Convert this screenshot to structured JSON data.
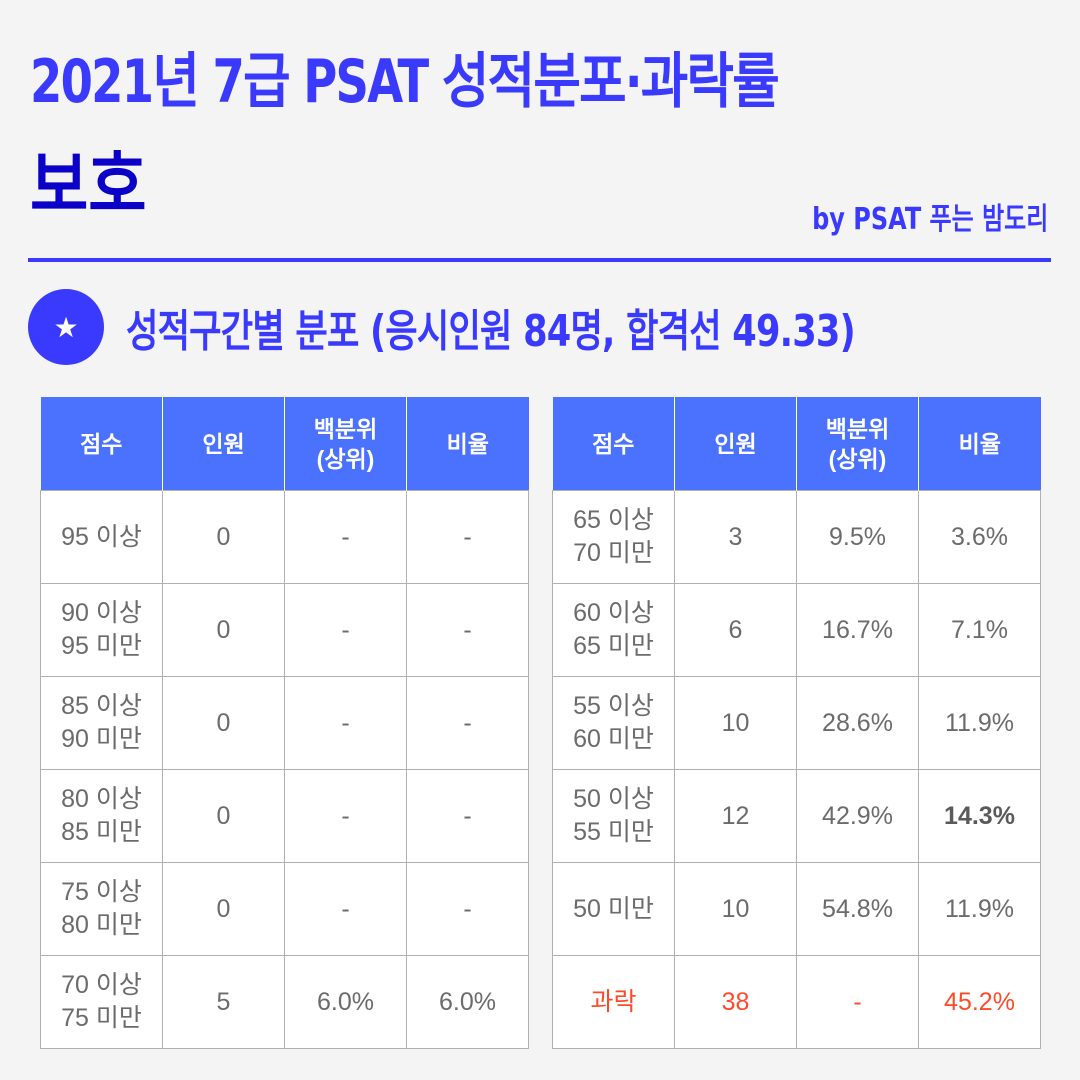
{
  "header": {
    "title": "2021년 7급 PSAT 성적분포·과락률",
    "subtitle": "보호",
    "byline": "by PSAT 푸는 밤도리"
  },
  "section": {
    "icon": "star-icon",
    "icon_glyph": "★",
    "title": "성적구간별 분포 (응시인원 84명, 합격선 49.33)"
  },
  "colors": {
    "accent": "#3a3aff",
    "subtitle": "#0a00c8",
    "table_header": "#4a72ff",
    "fail": "#ff4a2a",
    "background": "#f4f4f4"
  },
  "table_headers": [
    "점수",
    "인원",
    "백분위\n(상위)",
    "비율"
  ],
  "left_table": {
    "rows": [
      {
        "score": "95 이상",
        "count": "0",
        "percentile": "-",
        "ratio": "-"
      },
      {
        "score": "90 이상\n95 미만",
        "count": "0",
        "percentile": "-",
        "ratio": "-"
      },
      {
        "score": "85 이상\n90 미만",
        "count": "0",
        "percentile": "-",
        "ratio": "-"
      },
      {
        "score": "80 이상\n85 미만",
        "count": "0",
        "percentile": "-",
        "ratio": "-"
      },
      {
        "score": "75 이상\n80 미만",
        "count": "0",
        "percentile": "-",
        "ratio": "-"
      },
      {
        "score": "70 이상\n75 미만",
        "count": "5",
        "percentile": "6.0%",
        "ratio": "6.0%"
      }
    ]
  },
  "right_table": {
    "rows": [
      {
        "score": "65 이상\n70 미만",
        "count": "3",
        "percentile": "9.5%",
        "ratio": "3.6%"
      },
      {
        "score": "60 이상\n65 미만",
        "count": "6",
        "percentile": "16.7%",
        "ratio": "7.1%"
      },
      {
        "score": "55 이상\n60 미만",
        "count": "10",
        "percentile": "28.6%",
        "ratio": "11.9%"
      },
      {
        "score": "50 이상\n55 미만",
        "count": "12",
        "percentile": "42.9%",
        "ratio": "14.3%",
        "ratio_bold": true
      },
      {
        "score": "50 미만",
        "count": "10",
        "percentile": "54.8%",
        "ratio": "11.9%"
      },
      {
        "score": "과락",
        "count": "38",
        "percentile": "-",
        "ratio": "45.2%",
        "fail": true
      }
    ]
  }
}
